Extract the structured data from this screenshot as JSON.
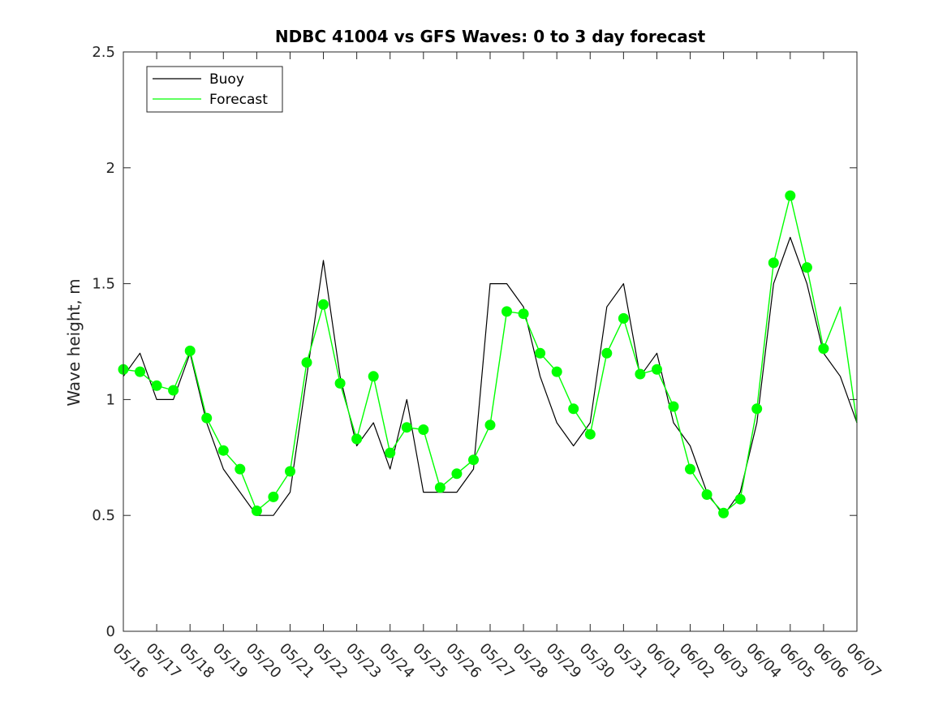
{
  "chart_data": {
    "type": "line",
    "title": "NDBC 41004 vs GFS Waves: 0 to 3 day forecast",
    "xlabel": "",
    "ylabel": "Wave height, m",
    "xlim": [
      "05/16",
      "06/07"
    ],
    "ylim": [
      0,
      2.5
    ],
    "grid": false,
    "legend_position": "top-left",
    "x_tick_labels": [
      "05/16",
      "05/17",
      "05/18",
      "05/19",
      "05/20",
      "05/21",
      "05/22",
      "05/23",
      "05/24",
      "05/25",
      "05/26",
      "05/27",
      "05/28",
      "05/29",
      "05/30",
      "05/31",
      "06/01",
      "06/02",
      "06/03",
      "06/04",
      "06/05",
      "06/06",
      "06/07"
    ],
    "y_ticks": [
      0,
      0.5,
      1,
      1.5,
      2,
      2.5
    ],
    "y_tick_labels": [
      "0",
      "0.5",
      "1",
      "1.5",
      "2",
      "2.5"
    ],
    "colors": {
      "buoy": "#000000",
      "forecast": "#00ff00"
    },
    "series": [
      {
        "name": "Buoy",
        "x": [
          "05/16 00:00",
          "05/16 12:00",
          "05/17 00:00",
          "05/17 12:00",
          "05/18 00:00",
          "05/18 12:00",
          "05/19 00:00",
          "05/19 12:00",
          "05/20 00:00",
          "05/20 12:00",
          "05/21 00:00",
          "05/21 12:00",
          "05/22 00:00",
          "05/22 12:00",
          "05/23 00:00",
          "05/23 12:00",
          "05/24 00:00",
          "05/24 12:00",
          "05/25 00:00",
          "05/25 12:00",
          "05/26 00:00",
          "05/26 12:00",
          "05/27 00:00",
          "05/27 12:00",
          "05/28 00:00",
          "05/28 12:00",
          "05/29 00:00",
          "05/29 12:00",
          "05/30 00:00",
          "05/30 12:00",
          "05/31 00:00",
          "05/31 12:00",
          "06/01 00:00",
          "06/01 12:00",
          "06/02 00:00",
          "06/02 12:00",
          "06/03 00:00",
          "06/03 12:00",
          "06/04 00:00",
          "06/04 12:00",
          "06/05 00:00",
          "06/05 12:00",
          "06/06 00:00",
          "06/06 12:00",
          "06/07 00:00"
        ],
        "values": [
          1.1,
          1.2,
          1.0,
          1.0,
          1.2,
          0.9,
          0.7,
          0.6,
          0.5,
          0.5,
          0.6,
          1.1,
          1.6,
          1.1,
          0.8,
          0.9,
          0.7,
          1.0,
          0.6,
          0.6,
          0.6,
          0.7,
          1.5,
          1.5,
          1.4,
          1.1,
          0.9,
          0.8,
          0.9,
          1.4,
          1.5,
          1.1,
          1.2,
          0.9,
          0.8,
          0.6,
          0.5,
          0.6,
          0.9,
          1.5,
          1.7,
          1.5,
          1.2,
          1.1,
          0.9
        ]
      },
      {
        "name": "Forecast",
        "x": [
          "05/16 00:00",
          "05/16 12:00",
          "05/17 00:00",
          "05/17 12:00",
          "05/18 00:00",
          "05/18 12:00",
          "05/19 00:00",
          "05/19 12:00",
          "05/20 00:00",
          "05/20 12:00",
          "05/21 00:00",
          "05/21 12:00",
          "05/22 00:00",
          "05/22 12:00",
          "05/23 00:00",
          "05/23 12:00",
          "05/24 00:00",
          "05/24 12:00",
          "05/25 00:00",
          "05/25 12:00",
          "05/26 00:00",
          "05/26 12:00",
          "05/27 00:00",
          "05/27 12:00",
          "05/28 00:00",
          "05/28 12:00",
          "05/29 00:00",
          "05/29 12:00",
          "05/30 00:00",
          "05/30 12:00",
          "05/31 00:00",
          "05/31 12:00",
          "06/01 00:00",
          "06/01 12:00",
          "06/02 00:00",
          "06/02 12:00",
          "06/03 00:00",
          "06/03 12:00",
          "06/04 00:00",
          "06/04 12:00",
          "06/05 00:00",
          "06/05 12:00",
          "06/06 00:00",
          "06/06 12:00",
          "06/07 00:00"
        ],
        "values": [
          1.13,
          1.12,
          1.06,
          1.04,
          1.21,
          0.92,
          0.78,
          0.7,
          0.52,
          0.58,
          0.69,
          1.16,
          1.41,
          1.07,
          0.83,
          1.1,
          0.77,
          0.88,
          0.87,
          0.62,
          0.68,
          0.74,
          0.89,
          1.38,
          1.37,
          1.2,
          1.12,
          0.96,
          0.85,
          1.2,
          1.35,
          1.11,
          1.13,
          0.97,
          0.7,
          0.59,
          0.51,
          0.57,
          0.96,
          1.59,
          1.88,
          1.57,
          1.22,
          1.4,
          0.9
        ]
      }
    ],
    "forecast_markers": {
      "x": [
        "05/16 00:00",
        "05/16 12:00",
        "05/17 00:00",
        "05/17 12:00",
        "05/18 00:00",
        "05/18 12:00",
        "05/19 00:00",
        "05/19 12:00",
        "05/20 00:00",
        "05/20 12:00",
        "05/21 00:00",
        "05/21 12:00",
        "05/22 00:00",
        "05/22 12:00",
        "05/23 00:00",
        "05/23 12:00",
        "05/24 00:00",
        "05/24 12:00",
        "05/25 00:00",
        "05/25 12:00",
        "05/26 00:00",
        "05/26 12:00",
        "05/27 00:00",
        "05/27 12:00",
        "05/28 00:00",
        "05/28 12:00",
        "05/29 00:00",
        "05/29 12:00",
        "05/30 00:00",
        "05/30 12:00",
        "05/31 00:00",
        "05/31 12:00",
        "06/01 00:00",
        "06/01 12:00",
        "06/02 00:00",
        "06/02 12:00",
        "06/03 00:00",
        "06/03 12:00",
        "06/04 00:00",
        "06/04 12:00",
        "06/05 00:00",
        "06/05 12:00",
        "06/06 00:00"
      ],
      "values": [
        1.13,
        1.12,
        1.06,
        1.04,
        1.21,
        0.92,
        0.78,
        0.7,
        0.52,
        0.58,
        0.69,
        1.16,
        1.41,
        1.07,
        0.83,
        1.1,
        0.77,
        0.88,
        0.87,
        0.62,
        0.68,
        0.74,
        0.89,
        1.38,
        1.37,
        1.2,
        1.12,
        0.96,
        0.85,
        1.2,
        1.35,
        1.11,
        1.13,
        0.97,
        0.7,
        0.59,
        0.51,
        0.57,
        0.96,
        1.59,
        1.88,
        1.57,
        1.22
      ]
    }
  }
}
